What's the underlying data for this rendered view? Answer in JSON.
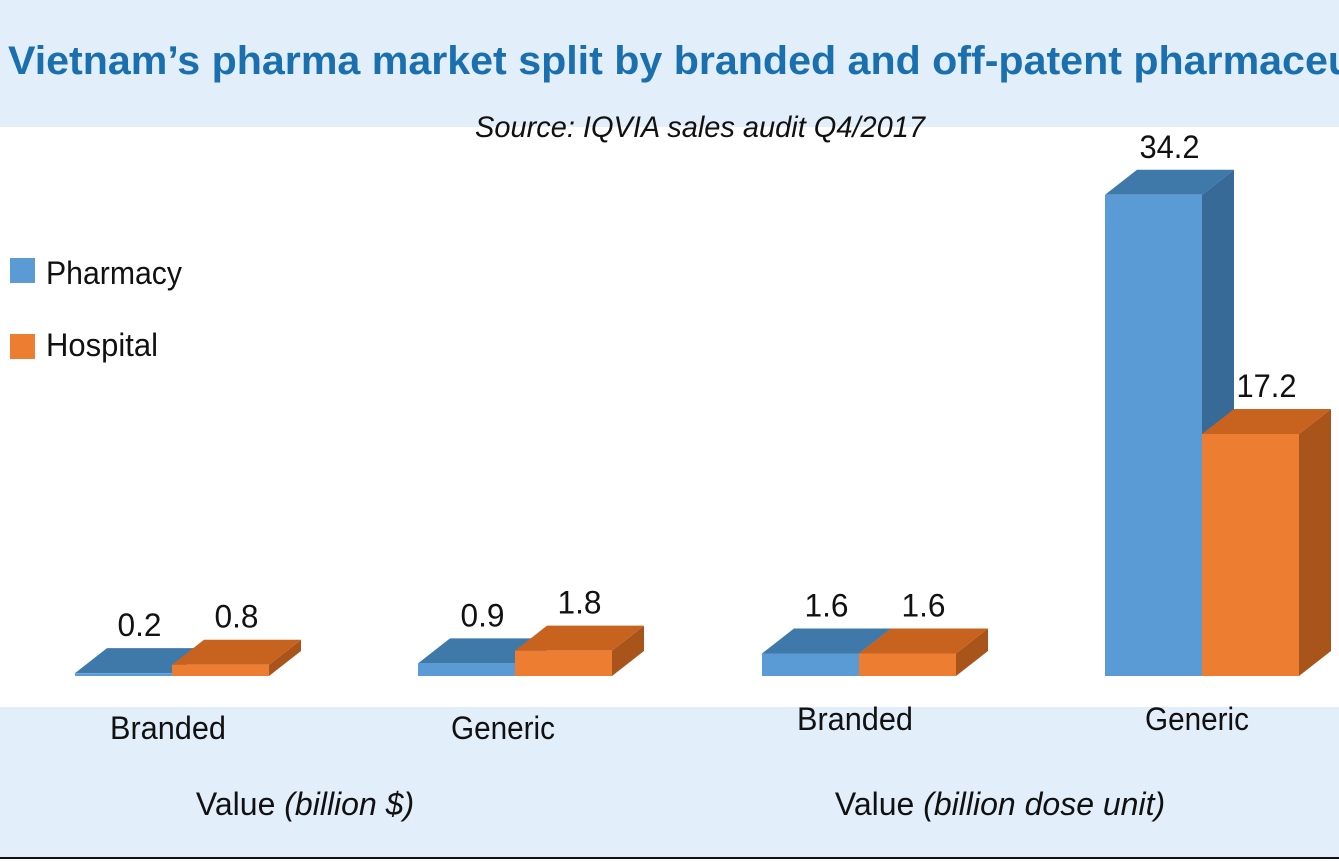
{
  "chart_data": {
    "type": "bar",
    "style": "3d-clustered",
    "title": "Vietnam’s pharma market split by branded and off-patent pharmaceu",
    "subtitle": "Source: IQVIA sales audit Q4/2017",
    "legend": {
      "placement": "left",
      "entries": [
        "Pharmacy",
        "Hospital"
      ]
    },
    "grid": false,
    "groups": [
      {
        "label_main": "Value ",
        "label_unit": "(billion $)",
        "categories": [
          "Branded",
          "Generic"
        ]
      },
      {
        "label_main": "Value ",
        "label_unit": "(billion dose unit)",
        "categories": [
          "Branded",
          "Generic"
        ]
      }
    ],
    "categories": [
      "Branded",
      "Generic",
      "Branded",
      "Generic"
    ],
    "series": [
      {
        "name": "Pharmacy",
        "color": "#5b9bd5",
        "values": [
          0.2,
          0.9,
          1.6,
          34.2
        ],
        "labels": [
          "0.2",
          "0.9",
          "1.6",
          "34.2"
        ]
      },
      {
        "name": "Hospital",
        "color": "#ed7d31",
        "values": [
          0.8,
          1.8,
          1.6,
          17.2
        ],
        "labels": [
          "0.8",
          "1.8",
          "1.6",
          "17.2"
        ]
      }
    ]
  },
  "colors": {
    "band": "#e2eef9",
    "title": "#1a6fae"
  }
}
